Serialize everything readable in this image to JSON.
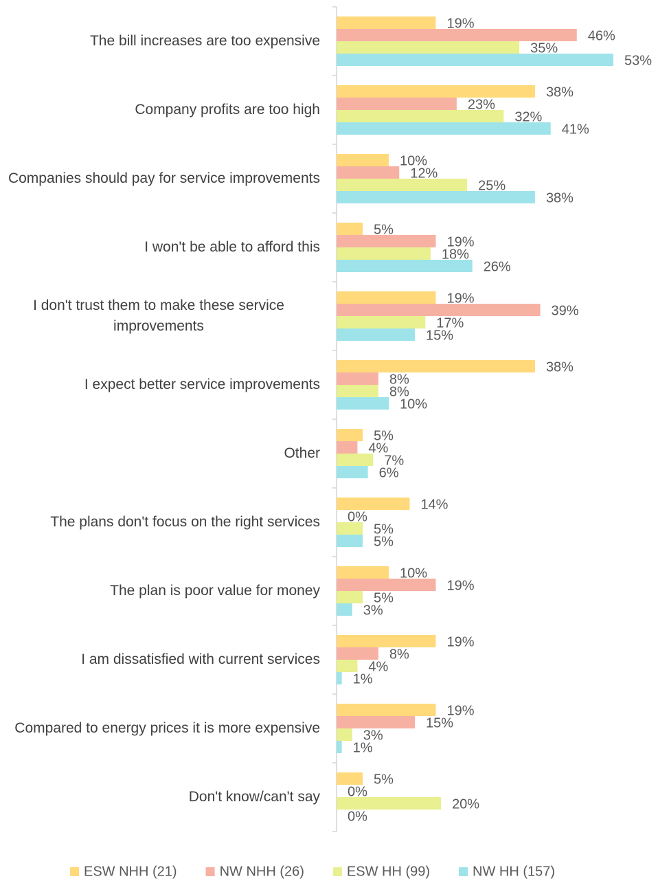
{
  "chart_data": {
    "type": "hbar",
    "categories": [
      "The bill increases are too expensive",
      "Company profits are too high",
      "Companies should pay for service improvements",
      "I won't be able to afford this",
      "I don't trust them to make these service improvements",
      "I expect better service improvements",
      "Other",
      "The plans don't focus on the right services",
      "The plan is poor value for money",
      "I am dissatisfied with current services",
      "Compared to energy prices it is more expensive",
      "Don't know/can't say"
    ],
    "series": [
      {
        "name": "ESW NHH (21)",
        "color": "#FFD97A",
        "values": [
          19,
          38,
          10,
          5,
          19,
          38,
          5,
          14,
          10,
          19,
          19,
          5
        ],
        "value_labels": [
          "19%",
          "38%",
          "10%",
          "5%",
          "19%",
          "38%",
          "5%",
          "14%",
          "10%",
          "19%",
          "19%",
          "5%"
        ]
      },
      {
        "name": "NW NHH (26)",
        "color": "#F7B1A3",
        "values": [
          46,
          23,
          12,
          19,
          39,
          8,
          4,
          0,
          19,
          8,
          15,
          0
        ],
        "value_labels": [
          "46%",
          "23%",
          "12%",
          "19%",
          "39%",
          "8%",
          "4%",
          "0%",
          "19%",
          "8%",
          "15%",
          "0%"
        ]
      },
      {
        "name": "ESW HH (99)",
        "color": "#E8F08F",
        "values": [
          35,
          32,
          25,
          18,
          17,
          8,
          7,
          5,
          5,
          4,
          3,
          20
        ],
        "value_labels": [
          "35%",
          "32%",
          "25%",
          "18%",
          "17%",
          "8%",
          "7%",
          "5%",
          "5%",
          "4%",
          "3%",
          "20%"
        ]
      },
      {
        "name": "NW HH (157)",
        "color": "#9EE3EA",
        "values": [
          53,
          41,
          38,
          26,
          15,
          10,
          6,
          5,
          3,
          1,
          1,
          0
        ],
        "value_labels": [
          "53%",
          "41%",
          "38%",
          "26%",
          "15%",
          "10%",
          "6%",
          "5%",
          "3%",
          "1%",
          "1%",
          "0%"
        ]
      }
    ],
    "legend": "bottom"
  }
}
